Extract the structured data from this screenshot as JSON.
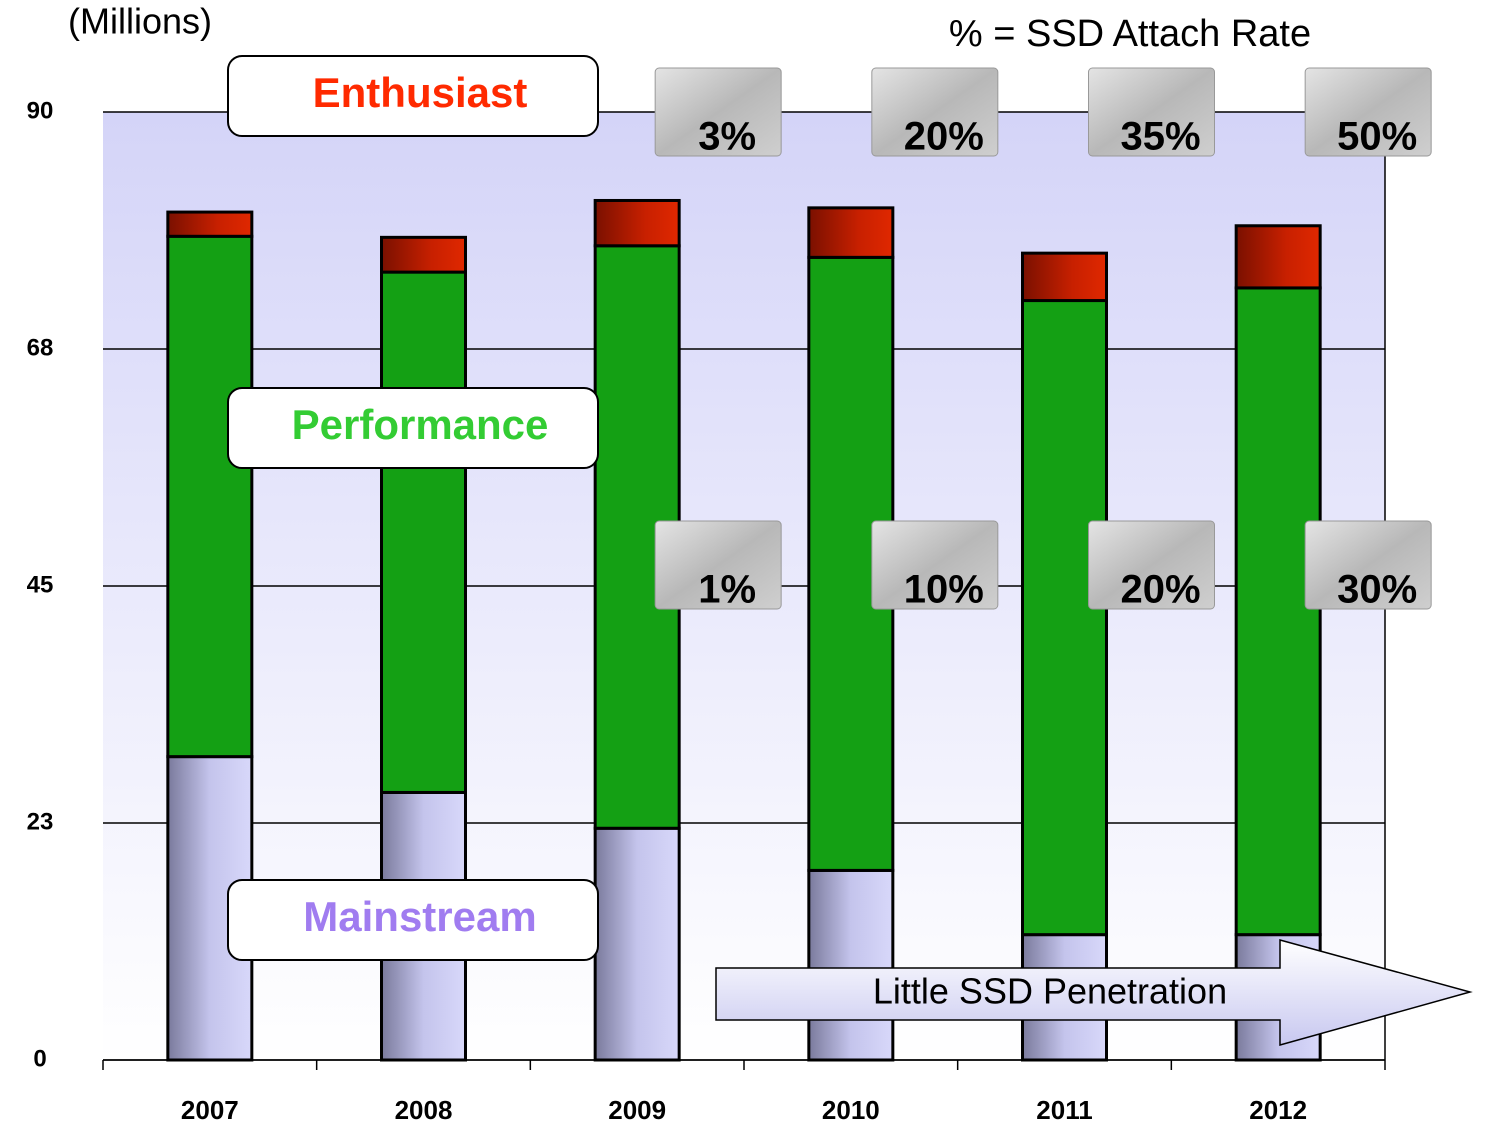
{
  "chart_data": {
    "type": "stacked_bar",
    "y_unit_label": "(Millions)",
    "note": "% = SSD Attach Rate",
    "categories": [
      "2007",
      "2008",
      "2009",
      "2010",
      "2011",
      "2012"
    ],
    "series": [
      {
        "name": "Mainstream",
        "color": "#c4c4ec",
        "label_color": "#a07cf0",
        "values": [
          28.8,
          25.4,
          22.0,
          18.0,
          11.9,
          11.9
        ]
      },
      {
        "name": "Performance",
        "color": "#14a014",
        "label_color": "#33cc33",
        "values": [
          49.4,
          49.4,
          55.3,
          58.2,
          60.2,
          61.4
        ]
      },
      {
        "name": "Enthusiast",
        "color": "#c82000",
        "label_color": "#ff2a00",
        "values": [
          2.3,
          3.3,
          4.3,
          4.7,
          4.5,
          5.9
        ]
      }
    ],
    "ylim": [
      0,
      90
    ],
    "yticks": [
      0,
      {
        "value": 22.5,
        "label": "23"
      },
      45,
      {
        "value": 67.5,
        "label": "68"
      },
      90
    ],
    "grid": true,
    "ssd_attach_rates": [
      {
        "series": "Enthusiast",
        "categories": [
          "2009",
          "2010",
          "2011",
          "2012"
        ],
        "values": [
          3,
          20,
          35,
          50
        ],
        "value_labels": [
          "3%",
          "20%",
          "35%",
          "50%"
        ]
      },
      {
        "series": "Performance",
        "categories": [
          "2009",
          "2010",
          "2011",
          "2012"
        ],
        "values": [
          1,
          10,
          20,
          30
        ],
        "value_labels": [
          "1%",
          "10%",
          "20%",
          "30%"
        ]
      }
    ],
    "arrow_label": "Little SSD Penetration"
  }
}
